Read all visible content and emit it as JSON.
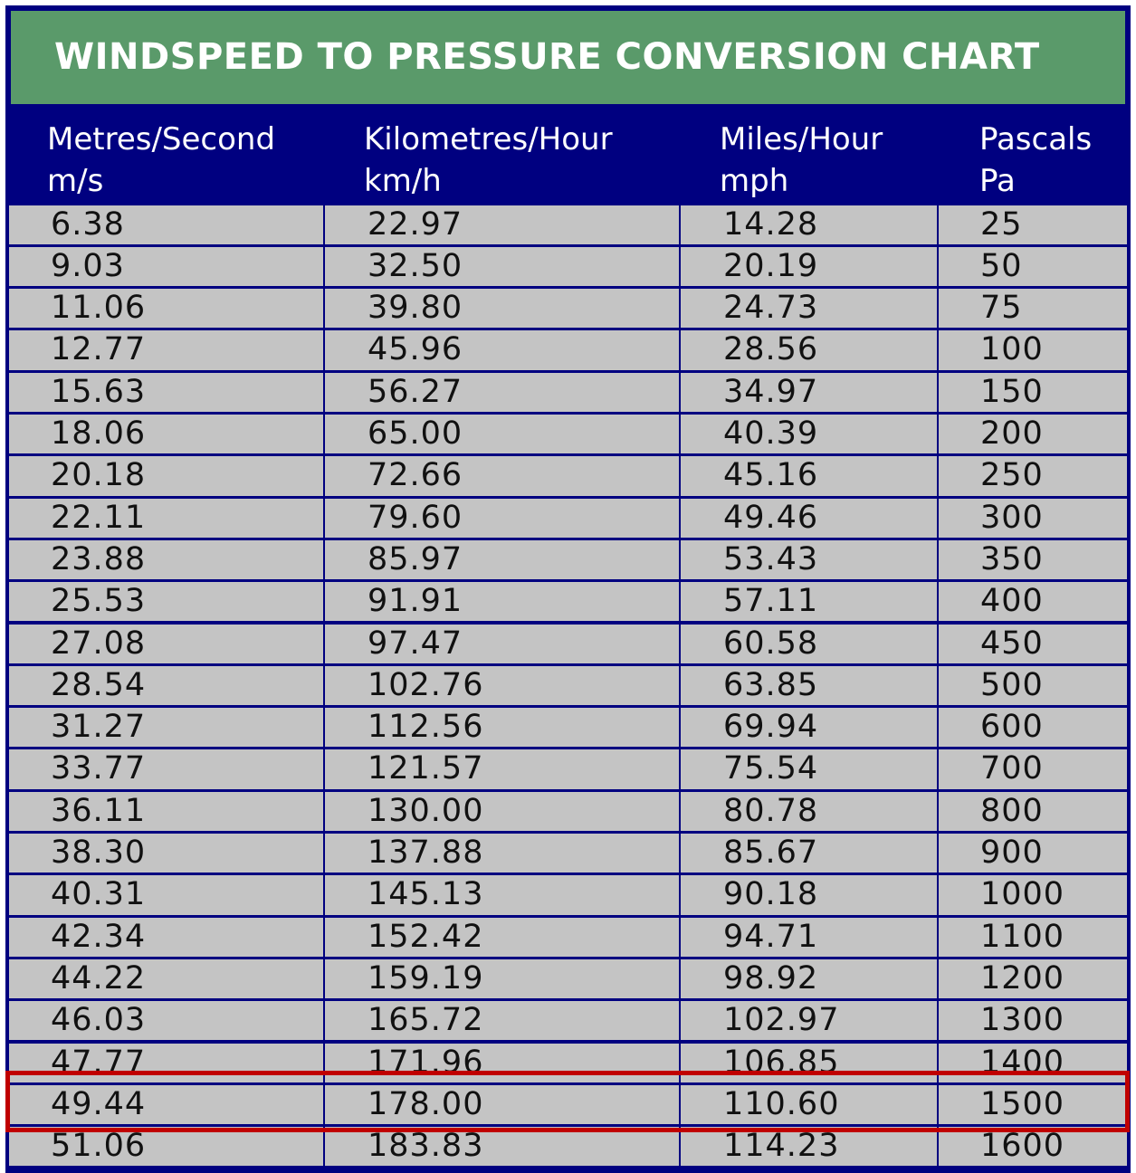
{
  "title": "WINDSPEED TO PRESSURE CONVERSION CHART",
  "colors": {
    "title_background": "#5a9a6a",
    "header_background": "#000080",
    "cell_background": "#c4c4c4",
    "highlight_border": "#c00000"
  },
  "columns": [
    {
      "name": "Metres/Second",
      "unit": "m/s"
    },
    {
      "name": "Kilometres/Hour",
      "unit": "km/h"
    },
    {
      "name": "Miles/Hour",
      "unit": "mph"
    },
    {
      "name": "Pascals",
      "unit": "Pa"
    }
  ],
  "rows": [
    [
      "6.38",
      "22.97",
      "14.28",
      "25"
    ],
    [
      "9.03",
      "32.50",
      "20.19",
      "50"
    ],
    [
      "11.06",
      "39.80",
      "24.73",
      "75"
    ],
    [
      "12.77",
      "45.96",
      "28.56",
      "100"
    ],
    [
      "15.63",
      "56.27",
      "34.97",
      "150"
    ],
    [
      "18.06",
      "65.00",
      "40.39",
      "200"
    ],
    [
      "20.18",
      "72.66",
      "45.16",
      "250"
    ],
    [
      "22.11",
      "79.60",
      "49.46",
      "300"
    ],
    [
      "23.88",
      "85.97",
      "53.43",
      "350"
    ],
    [
      "25.53",
      "91.91",
      "57.11",
      "400"
    ],
    [
      "27.08",
      "97.47",
      "60.58",
      "450"
    ],
    [
      "28.54",
      "102.76",
      "63.85",
      "500"
    ],
    [
      "31.27",
      "112.56",
      "69.94",
      "600"
    ],
    [
      "33.77",
      "121.57",
      "75.54",
      "700"
    ],
    [
      "36.11",
      "130.00",
      "80.78",
      "800"
    ],
    [
      "38.30",
      "137.88",
      "85.67",
      "900"
    ],
    [
      "40.31",
      "145.13",
      "90.18",
      "1000"
    ],
    [
      "42.34",
      "152.42",
      "94.71",
      "1100"
    ],
    [
      "44.22",
      "159.19",
      "98.92",
      "1200"
    ],
    [
      "46.03",
      "165.72",
      "102.97",
      "1300"
    ],
    [
      "47.77",
      "171.96",
      "106.85",
      "1400"
    ],
    [
      "49.44",
      "178.00",
      "110.60",
      "1500"
    ],
    [
      "51.06",
      "183.83",
      "114.23",
      "1600"
    ]
  ],
  "highlighted_row": [
    "49.44",
    "178.00",
    "110.60",
    "1500"
  ]
}
